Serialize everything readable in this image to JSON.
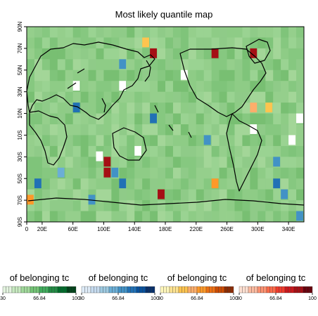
{
  "chart_data": {
    "type": "heatmap",
    "title": "Most likely quantile map",
    "x_ticks": [
      "0",
      "20E",
      "60E",
      "100E",
      "140E",
      "180E",
      "220E",
      "260E",
      "300E",
      "340E"
    ],
    "y_ticks": [
      "90S",
      "70S",
      "50S",
      "30S",
      "10S",
      "10N",
      "30N",
      "50N",
      "70N",
      "90N"
    ],
    "xlim": [
      0,
      360
    ],
    "ylim": [
      -90,
      90
    ],
    "grid_resolution_deg": 10,
    "highlighted_cells": [
      {
        "lon": 0,
        "lat": -70,
        "category": "q3",
        "value": 60
      },
      {
        "lon": 10,
        "lat": -55,
        "category": "q2",
        "value": 70
      },
      {
        "lon": 40,
        "lat": -45,
        "category": "q2",
        "value": 40
      },
      {
        "lon": 60,
        "lat": 35,
        "category": "q1",
        "value": 0
      },
      {
        "lon": 60,
        "lat": 15,
        "category": "q2",
        "value": 70
      },
      {
        "lon": 80,
        "lat": -70,
        "category": "q2",
        "value": 50
      },
      {
        "lon": 90,
        "lat": -30,
        "category": "q1",
        "value": 0
      },
      {
        "lon": 100,
        "lat": -35,
        "category": "q4",
        "value": 80
      },
      {
        "lon": 100,
        "lat": -45,
        "category": "q4",
        "value": 80
      },
      {
        "lon": 110,
        "lat": -45,
        "category": "q2",
        "value": 60
      },
      {
        "lon": 120,
        "lat": -55,
        "category": "q2",
        "value": 70
      },
      {
        "lon": 120,
        "lat": 55,
        "category": "q2",
        "value": 60
      },
      {
        "lon": 120,
        "lat": 35,
        "category": "q1",
        "value": 0
      },
      {
        "lon": 140,
        "lat": -25,
        "category": "q1",
        "value": 0
      },
      {
        "lon": 150,
        "lat": 75,
        "category": "q3",
        "value": 30
      },
      {
        "lon": 160,
        "lat": 65,
        "category": "q4",
        "value": 80
      },
      {
        "lon": 160,
        "lat": 5,
        "category": "q2",
        "value": 70
      },
      {
        "lon": 170,
        "lat": -65,
        "category": "q4",
        "value": 90
      },
      {
        "lon": 200,
        "lat": 45,
        "category": "q1",
        "value": 0
      },
      {
        "lon": 230,
        "lat": -15,
        "category": "q2",
        "value": 60
      },
      {
        "lon": 240,
        "lat": 65,
        "category": "q4",
        "value": 80
      },
      {
        "lon": 240,
        "lat": -55,
        "category": "q3",
        "value": 60
      },
      {
        "lon": 290,
        "lat": 65,
        "category": "q4",
        "value": 90
      },
      {
        "lon": 290,
        "lat": 15,
        "category": "q3",
        "value": 40
      },
      {
        "lon": 290,
        "lat": -5,
        "category": "q1",
        "value": 0
      },
      {
        "lon": 310,
        "lat": 15,
        "category": "q3",
        "value": 30
      },
      {
        "lon": 320,
        "lat": -35,
        "category": "q2",
        "value": 60
      },
      {
        "lon": 320,
        "lat": -55,
        "category": "q2",
        "value": 70
      },
      {
        "lon": 330,
        "lat": -65,
        "category": "q2",
        "value": 50
      },
      {
        "lon": 340,
        "lat": -15,
        "category": "q1",
        "value": 0
      },
      {
        "lon": 350,
        "lat": 5,
        "category": "q1",
        "value": 0
      },
      {
        "lon": 350,
        "lat": -85,
        "category": "q2",
        "value": 50
      }
    ],
    "background_category": "q1",
    "legends": [
      {
        "label": "of belonging tc",
        "palette": "greens",
        "ticks": [
          "30",
          "66.84",
          "100"
        ]
      },
      {
        "label": "of belonging tc",
        "palette": "blues",
        "ticks": [
          "30",
          "66.84",
          "100"
        ]
      },
      {
        "label": "of belonging tc",
        "palette": "oranges",
        "ticks": [
          "30",
          "66.84",
          "100"
        ]
      },
      {
        "label": "of belonging tc",
        "palette": "reds",
        "ticks": [
          "30",
          "66.84",
          "100"
        ]
      }
    ],
    "palettes": {
      "greens": [
        "#e3f3df",
        "#c7e9c0",
        "#a1d99b",
        "#74c476",
        "#41ab5d",
        "#238b45",
        "#006d2c",
        "#00441b"
      ],
      "blues": [
        "#deebf7",
        "#c6dbef",
        "#9ecae1",
        "#6baed6",
        "#4292c6",
        "#2171b5",
        "#08519c",
        "#08306b"
      ],
      "oranges": [
        "#fff7bc",
        "#fee391",
        "#fec44f",
        "#fdae6b",
        "#fe9929",
        "#ec7014",
        "#cc4c02",
        "#8c2d04"
      ],
      "reds": [
        "#fee0d2",
        "#fcbba1",
        "#fc9272",
        "#fb6a4a",
        "#ef3b2c",
        "#cb181d",
        "#a50f15",
        "#67000d"
      ]
    },
    "grid": false
  }
}
